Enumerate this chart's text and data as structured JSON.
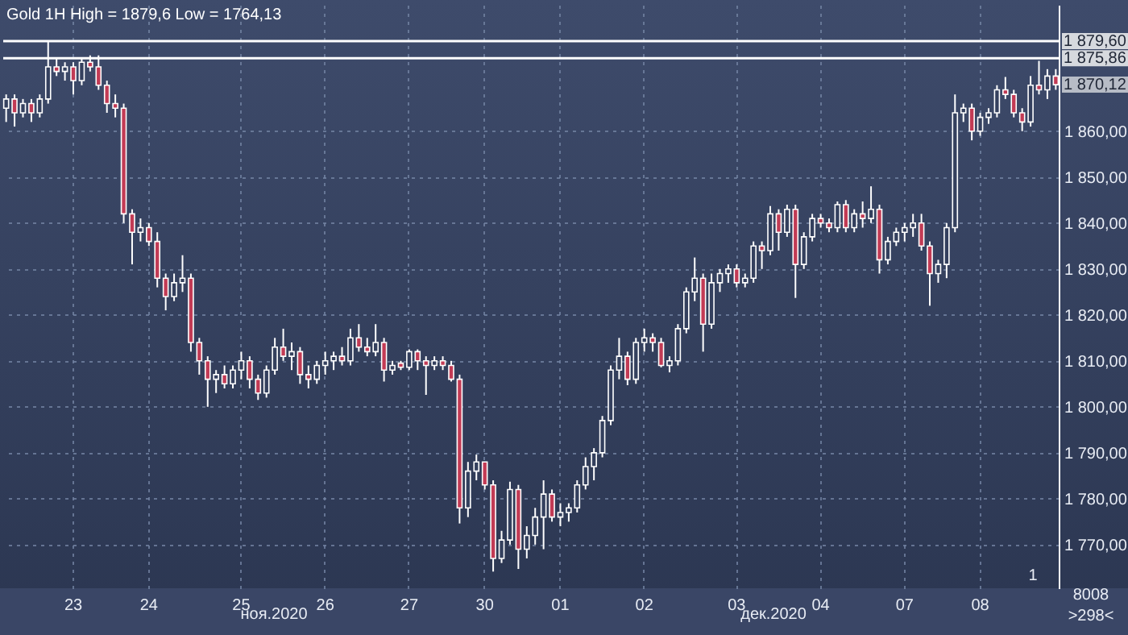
{
  "chart_data": {
    "type": "candlestick",
    "title": "Gold 1H High = 1879,6 Low = 1764,13",
    "color": "#ffffff",
    "categories": [
      null,
      null,
      null,
      null,
      null,
      null,
      null,
      null,
      "23",
      null,
      null,
      null,
      null,
      null,
      null,
      null,
      null,
      "24",
      null,
      null,
      null,
      null,
      null,
      null,
      null,
      null,
      null,
      null,
      "25",
      null,
      null,
      null,
      null,
      null,
      null,
      null,
      null,
      null,
      "26",
      null,
      null,
      null,
      null,
      null,
      null,
      null,
      null,
      null,
      "27",
      null,
      null,
      null,
      null,
      null,
      null,
      null,
      null,
      "30",
      null,
      null,
      null,
      null,
      null,
      null,
      null,
      null,
      "01",
      null,
      null,
      null,
      null,
      null,
      null,
      null,
      null,
      null,
      "02",
      null,
      null,
      null,
      null,
      null,
      null,
      null,
      null,
      null,
      null,
      "03",
      null,
      null,
      null,
      null,
      null,
      null,
      null,
      null,
      null,
      "04",
      null,
      null,
      null,
      null,
      null,
      null,
      null,
      null,
      null,
      "07",
      null,
      null,
      null,
      null,
      null,
      null,
      null,
      null,
      "08",
      null,
      null,
      null,
      null,
      null,
      null,
      null,
      null,
      null
    ],
    "ohlc": [
      [
        1865,
        1868,
        1862,
        1867
      ],
      [
        1867,
        1868,
        1861,
        1864
      ],
      [
        1864,
        1867,
        1863,
        1866
      ],
      [
        1866,
        1867,
        1862,
        1864
      ],
      [
        1864,
        1868,
        1863,
        1867
      ],
      [
        1867,
        1879.6,
        1866,
        1874
      ],
      [
        1874,
        1876,
        1872,
        1873
      ],
      [
        1873,
        1875,
        1871,
        1874
      ],
      [
        1874,
        1875,
        1868,
        1871
      ],
      [
        1871,
        1876,
        1870,
        1875
      ],
      [
        1875,
        1876.5,
        1873,
        1874
      ],
      [
        1874,
        1876.5,
        1869,
        1870
      ],
      [
        1870,
        1871,
        1864,
        1866
      ],
      [
        1866,
        1868,
        1863,
        1865
      ],
      [
        1865,
        1866,
        1840,
        1842
      ],
      [
        1842,
        1843,
        1831,
        1838
      ],
      [
        1838,
        1841,
        1836,
        1839
      ],
      [
        1839,
        1840,
        1835,
        1836
      ],
      [
        1836,
        1838,
        1826,
        1828
      ],
      [
        1828,
        1829,
        1821,
        1824
      ],
      [
        1824,
        1829,
        1823,
        1827
      ],
      [
        1827,
        1833,
        1825,
        1828
      ],
      [
        1828,
        1829,
        1812,
        1814
      ],
      [
        1814,
        1815,
        1807,
        1810
      ],
      [
        1810,
        1811,
        1800,
        1806
      ],
      [
        1806,
        1808,
        1803,
        1807
      ],
      [
        1807,
        1809,
        1804,
        1805
      ],
      [
        1805,
        1809,
        1804,
        1808
      ],
      [
        1808,
        1812,
        1806,
        1810
      ],
      [
        1810,
        1811,
        1804,
        1806
      ],
      [
        1806,
        1807,
        1801.5,
        1803
      ],
      [
        1803,
        1809,
        1802,
        1808
      ],
      [
        1808,
        1815,
        1807,
        1813
      ],
      [
        1813,
        1817,
        1810,
        1811
      ],
      [
        1811,
        1814,
        1808,
        1812
      ],
      [
        1812,
        1813,
        1805,
        1807
      ],
      [
        1807,
        1809,
        1804,
        1806
      ],
      [
        1806,
        1810,
        1805,
        1809
      ],
      [
        1809,
        1812,
        1807,
        1810
      ],
      [
        1810,
        1812,
        1808,
        1811
      ],
      [
        1811,
        1813,
        1809,
        1810
      ],
      [
        1810,
        1817,
        1809,
        1815
      ],
      [
        1815,
        1818,
        1812,
        1813
      ],
      [
        1813,
        1815,
        1811,
        1812
      ],
      [
        1812,
        1818,
        1811,
        1814
      ],
      [
        1814,
        1815,
        1805.5,
        1808
      ],
      [
        1808,
        1810,
        1807,
        1809
      ],
      [
        1809.5,
        1810,
        1808,
        1808.6
      ],
      [
        1808.6,
        1812.5,
        1808,
        1812
      ],
      [
        1812,
        1812.5,
        1808,
        1810
      ],
      [
        1810,
        1811,
        1802.6,
        1809
      ],
      [
        1809,
        1811,
        1808,
        1810
      ],
      [
        1810,
        1811,
        1808,
        1809
      ],
      [
        1809,
        1810,
        1805.5,
        1806
      ],
      [
        1806,
        1807,
        1774.6,
        1778
      ],
      [
        1778,
        1788,
        1776,
        1786
      ],
      [
        1786,
        1789.6,
        1784,
        1788
      ],
      [
        1788,
        1788,
        1782,
        1783
      ],
      [
        1783,
        1784,
        1764.13,
        1767
      ],
      [
        1767,
        1773,
        1766,
        1771
      ],
      [
        1771,
        1783.7,
        1770,
        1782
      ],
      [
        1782,
        1783,
        1764.7,
        1769
      ],
      [
        1769,
        1774,
        1767,
        1772
      ],
      [
        1772,
        1778,
        1770,
        1776
      ],
      [
        1776,
        1784,
        1769,
        1781
      ],
      [
        1781,
        1782,
        1775,
        1776
      ],
      [
        1776,
        1779,
        1774,
        1777
      ],
      [
        1777,
        1779,
        1775,
        1778
      ],
      [
        1778,
        1784,
        1777,
        1783
      ],
      [
        1783,
        1789,
        1782,
        1787
      ],
      [
        1787,
        1791,
        1784,
        1790
      ],
      [
        1790,
        1798,
        1789,
        1797
      ],
      [
        1797,
        1809,
        1796,
        1808
      ],
      [
        1808,
        1815,
        1806,
        1811
      ],
      [
        1811,
        1812,
        1804.7,
        1806
      ],
      [
        1806,
        1815,
        1805,
        1814
      ],
      [
        1814,
        1817,
        1812,
        1815
      ],
      [
        1815,
        1816,
        1812,
        1814
      ],
      [
        1814,
        1815,
        1808.6,
        1809
      ],
      [
        1809,
        1811,
        1807.5,
        1810
      ],
      [
        1810,
        1818,
        1809,
        1817
      ],
      [
        1817,
        1826,
        1816,
        1825
      ],
      [
        1825,
        1832.5,
        1823,
        1828
      ],
      [
        1828,
        1829,
        1812,
        1818
      ],
      [
        1818,
        1829,
        1817,
        1827
      ],
      [
        1827,
        1830,
        1825,
        1829
      ],
      [
        1829,
        1831,
        1827,
        1830
      ],
      [
        1830,
        1831,
        1826,
        1827
      ],
      [
        1827,
        1829,
        1826,
        1828
      ],
      [
        1828,
        1836,
        1827,
        1835
      ],
      [
        1835,
        1836,
        1830,
        1834
      ],
      [
        1834,
        1843.7,
        1833,
        1842
      ],
      [
        1842,
        1843,
        1834,
        1838
      ],
      [
        1838,
        1844,
        1837,
        1843
      ],
      [
        1843,
        1844,
        1823.7,
        1831
      ],
      [
        1831,
        1838,
        1830,
        1837
      ],
      [
        1837,
        1842,
        1836,
        1841
      ],
      [
        1841,
        1842,
        1839,
        1840
      ],
      [
        1840,
        1841,
        1838,
        1839
      ],
      [
        1839,
        1844.7,
        1838,
        1844
      ],
      [
        1844,
        1845,
        1838,
        1839
      ],
      [
        1839,
        1843,
        1838,
        1842
      ],
      [
        1842,
        1844.7,
        1839,
        1841
      ],
      [
        1841,
        1848,
        1840,
        1843
      ],
      [
        1843,
        1844,
        1829,
        1832
      ],
      [
        1832,
        1837,
        1831,
        1836
      ],
      [
        1836,
        1839,
        1835,
        1838
      ],
      [
        1838,
        1840,
        1836,
        1839
      ],
      [
        1839,
        1842,
        1837,
        1840
      ],
      [
        1840,
        1842,
        1834,
        1835
      ],
      [
        1835,
        1836,
        1822,
        1829
      ],
      [
        1829,
        1832,
        1827,
        1831
      ],
      [
        1831,
        1840,
        1828,
        1839
      ],
      [
        1839,
        1868,
        1838,
        1864
      ],
      [
        1864,
        1866,
        1862,
        1865
      ],
      [
        1865,
        1866,
        1858,
        1860
      ],
      [
        1860,
        1864,
        1859,
        1863
      ],
      [
        1863,
        1865,
        1861.6,
        1864
      ],
      [
        1864,
        1870,
        1863,
        1869
      ],
      [
        1869,
        1871.8,
        1867,
        1868
      ],
      [
        1868,
        1869,
        1863,
        1864
      ],
      [
        1864,
        1865,
        1860,
        1862
      ],
      [
        1862,
        1872,
        1861,
        1870
      ],
      [
        1870,
        1875.3,
        1868,
        1869
      ],
      [
        1869,
        1873.5,
        1867,
        1872
      ],
      [
        1872,
        1873.5,
        1869,
        1870.12
      ]
    ],
    "ylim": [
      1760.5,
      1887.5
    ],
    "yticks": [
      {
        "value": 1770,
        "label": "1 770,00"
      },
      {
        "value": 1780,
        "label": "1 780,00"
      },
      {
        "value": 1790,
        "label": "1 790,00"
      },
      {
        "value": 1800,
        "label": "1 800,00"
      },
      {
        "value": 1810,
        "label": "1 810,00"
      },
      {
        "value": 1820,
        "label": "1 820,00"
      },
      {
        "value": 1830,
        "label": "1 830,00"
      },
      {
        "value": 1840,
        "label": "1 840,00"
      },
      {
        "value": 1850,
        "label": "1 850,00"
      },
      {
        "value": 1860,
        "label": "1 860,00"
      }
    ],
    "ref_lines": [
      {
        "axis": "y",
        "value": 1879.6,
        "label": "1 879,60",
        "color": "#ffffff"
      },
      {
        "axis": "y",
        "value": 1875.86,
        "label": "1 875,86",
        "color": "#ffffff"
      }
    ],
    "annotations": [
      "1 870,12",
      "ноя.2020",
      "дек.2020",
      "1",
      "8008",
      ">298<"
    ],
    "grid": true
  }
}
